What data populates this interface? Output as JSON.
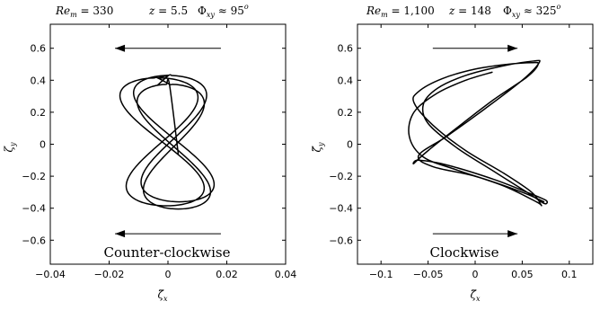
{
  "chart_data": [
    {
      "type": "line",
      "panel": "left",
      "title": {
        "Re_m": "330",
        "z": "5.5",
        "Phi_xy": "95"
      },
      "xlabel": "ζ̃x",
      "ylabel": "ζy",
      "xlim": [
        -0.04,
        0.04
      ],
      "ylim": [
        -0.75,
        0.75
      ],
      "xticks": [
        -0.04,
        -0.02,
        0,
        0.02,
        0.04
      ],
      "xtick_labels": [
        "−0.04",
        "−0.02",
        "0",
        "0.02",
        "0.04"
      ],
      "yticks": [
        -0.6,
        -0.4,
        -0.2,
        0,
        0.2,
        0.4,
        0.6
      ],
      "ytick_labels": [
        "−0.6",
        "−0.4",
        "−0.2",
        "0",
        "0.2",
        "0.4",
        "0.6"
      ],
      "grid": false,
      "annotation": "Counter-clockwise",
      "arrows": [
        {
          "y": 0.6,
          "x_from": 0.018,
          "x_to": -0.018,
          "direction": "left"
        },
        {
          "y": -0.56,
          "x_from": 0.018,
          "x_to": -0.018,
          "direction": "left"
        }
      ],
      "series": [
        {
          "description": "trajectory",
          "loops": [
            {
              "cx": 0.001,
              "tilt": -0.0018,
              "a": 0.0248,
              "b": 0.395,
              "dx": 0.001,
              "dy": 0.035
            },
            {
              "cx": -0.001,
              "tilt": -0.0015,
              "a": 0.0265,
              "b": 0.4,
              "dx": -0.001,
              "dy": 0.015
            },
            {
              "cx": 0.002,
              "tilt": -0.0015,
              "a": 0.0228,
              "b": 0.39,
              "dx": 0.0,
              "dy": -0.015
            }
          ],
          "start": [
            -0.0035,
            0.37
          ],
          "end": [
            0.0035,
            -0.06
          ]
        }
      ]
    },
    {
      "type": "line",
      "panel": "right",
      "title": {
        "Re_m": "1,100",
        "z": "148",
        "Phi_xy": "325"
      },
      "xlabel": "ζ̃x",
      "ylabel": "ζ̃y",
      "xlim": [
        -0.125,
        0.125
      ],
      "ylim": [
        -0.75,
        0.75
      ],
      "xticks": [
        -0.1,
        -0.05,
        0,
        0.05,
        0.1
      ],
      "xtick_labels": [
        "−0.1",
        "−0.05",
        "0",
        "0.05",
        "0.1"
      ],
      "yticks": [
        -0.6,
        -0.4,
        -0.2,
        0,
        0.2,
        0.4,
        0.6
      ],
      "ytick_labels": [
        "−0.6",
        "−0.4",
        "−0.2",
        "0",
        "0.2",
        "0.4",
        "0.6"
      ],
      "grid": false,
      "annotation": "Clockwise",
      "arrows": [
        {
          "y": 0.6,
          "x_from": -0.045,
          "x_to": 0.045,
          "direction": "right"
        },
        {
          "y": -0.56,
          "x_from": -0.045,
          "x_to": 0.045,
          "direction": "right"
        }
      ],
      "series": [
        {
          "description": "trajectory",
          "start": [
            0.018,
            0.45
          ],
          "points": [
            [
              0.018,
              0.45
            ],
            [
              -0.01,
              0.4
            ],
            [
              -0.04,
              0.32
            ],
            [
              -0.065,
              0.2
            ],
            [
              -0.07,
              0.05
            ],
            [
              -0.055,
              -0.08
            ],
            [
              -0.02,
              -0.16
            ],
            [
              0.03,
              -0.26
            ],
            [
              0.065,
              -0.36
            ],
            [
              0.07,
              -0.38
            ],
            [
              0.06,
              -0.3
            ],
            [
              0.03,
              -0.18
            ],
            [
              -0.01,
              -0.04
            ],
            [
              -0.045,
              0.12
            ],
            [
              -0.065,
              0.26
            ],
            [
              -0.06,
              0.33
            ],
            [
              -0.035,
              0.41
            ],
            [
              0.0,
              0.47
            ],
            [
              0.035,
              0.5
            ],
            [
              0.06,
              0.51
            ],
            [
              0.067,
              0.5
            ],
            [
              0.055,
              0.42
            ],
            [
              0.02,
              0.28
            ],
            [
              -0.02,
              0.1
            ],
            [
              -0.05,
              -0.04
            ],
            [
              -0.065,
              -0.12
            ],
            [
              -0.06,
              -0.1
            ],
            [
              -0.03,
              -0.13
            ],
            [
              0.02,
              -0.22
            ],
            [
              0.055,
              -0.3
            ],
            [
              0.075,
              -0.35
            ],
            [
              0.073,
              -0.37
            ],
            [
              0.055,
              -0.3
            ],
            [
              0.02,
              -0.17
            ],
            [
              -0.02,
              -0.02
            ],
            [
              -0.05,
              0.13
            ],
            [
              -0.055,
              0.25
            ],
            [
              -0.04,
              0.35
            ],
            [
              -0.01,
              0.43
            ],
            [
              0.03,
              0.49
            ],
            [
              0.062,
              0.52
            ],
            [
              0.068,
              0.51
            ],
            [
              0.05,
              0.4
            ],
            [
              0.01,
              0.22
            ],
            [
              -0.03,
              0.05
            ],
            [
              -0.06,
              -0.07
            ],
            [
              -0.045,
              -0.14
            ],
            [
              0.0,
              -0.2
            ],
            [
              0.05,
              -0.3
            ],
            [
              0.073,
              -0.36
            ]
          ]
        }
      ]
    }
  ]
}
